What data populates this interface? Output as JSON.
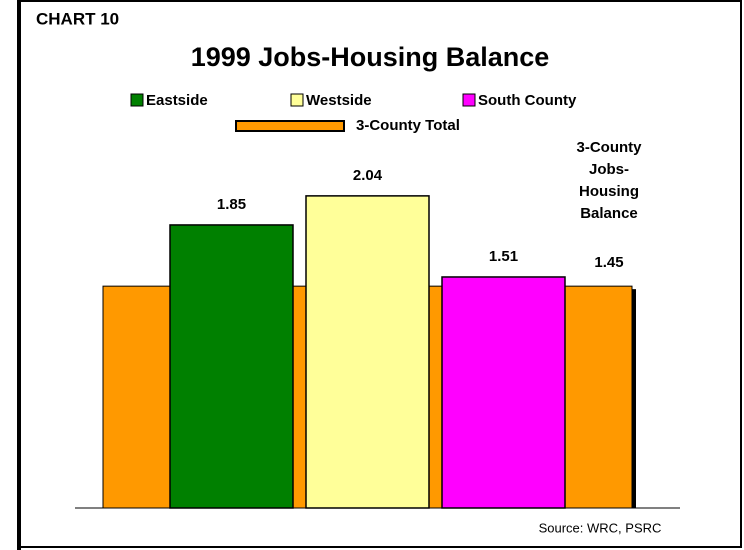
{
  "chart_data": {
    "type": "bar",
    "label": "CHART 10",
    "title": "1999 Jobs-Housing Balance",
    "series": [
      {
        "name": "Eastside",
        "color": "#008000",
        "values": [
          1.85
        ]
      },
      {
        "name": "Westside",
        "color": "#ffff99",
        "values": [
          2.04
        ]
      },
      {
        "name": "South County",
        "color": "#ff00ff",
        "values": [
          1.51
        ]
      }
    ],
    "reference": {
      "name": "3-County Total",
      "color": "#ff9900",
      "value": 1.45,
      "annotation": [
        "3-County",
        "Jobs-",
        "Housing",
        "Balance"
      ]
    },
    "ylim": [
      0,
      2.5
    ],
    "source": "Source: WRC, PSRC"
  }
}
